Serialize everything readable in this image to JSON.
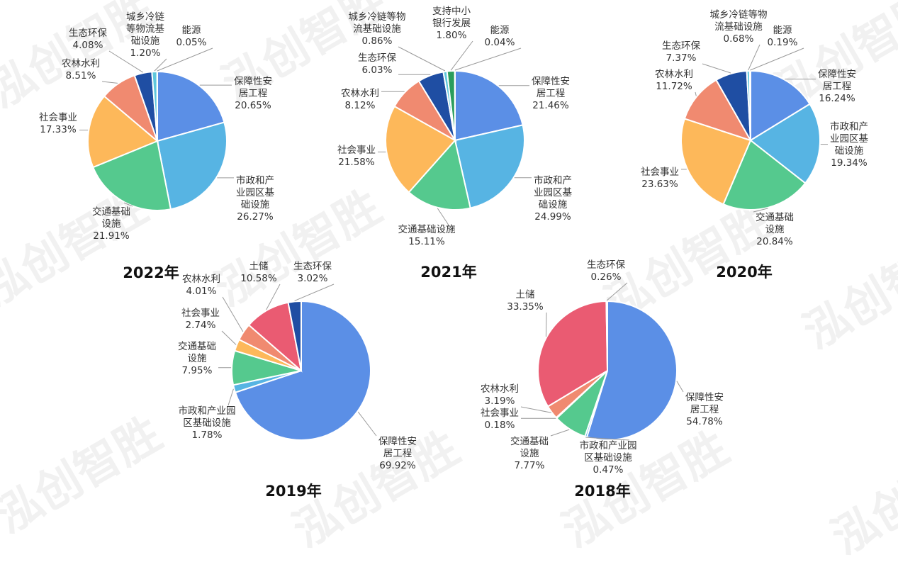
{
  "watermark": "泓创智胜",
  "colors": {
    "保障性安居工程": "#5b8fe6",
    "市政和产业园区基础设施": "#57b4e3",
    "交通基础设施": "#55c98e",
    "社会事业": "#fdb85a",
    "农林水利": "#f08a70",
    "生态环保": "#1f4ea3",
    "城乡冷链等物流基础设施": "#5fc7dc",
    "能源": "#2e9e5b",
    "支持中小银行发展": "#2a9d5c",
    "土储": "#ea5b72"
  },
  "chart_data": [
    {
      "type": "pie",
      "title": "2022年",
      "slices": [
        {
          "key": "保障性安居工程",
          "lines": [
            "保障性安",
            "居工程"
          ],
          "pct": "20.65%",
          "value": 20.65
        },
        {
          "key": "市政和产业园区基础设施",
          "lines": [
            "市政和产",
            "业园区基",
            "础设施"
          ],
          "pct": "26.27%",
          "value": 26.27
        },
        {
          "key": "交通基础设施",
          "lines": [
            "交通基础",
            "设施"
          ],
          "pct": "21.91%",
          "value": 21.91
        },
        {
          "key": "社会事业",
          "lines": [
            "社会事业"
          ],
          "pct": "17.33%",
          "value": 17.33
        },
        {
          "key": "农林水利",
          "lines": [
            "农林水利"
          ],
          "pct": "8.51%",
          "value": 8.51
        },
        {
          "key": "生态环保",
          "lines": [
            "生态环保"
          ],
          "pct": "4.08%",
          "value": 4.08
        },
        {
          "key": "城乡冷链等物流基础设施",
          "lines": [
            "城乡冷链",
            "等物流基",
            "础设施"
          ],
          "pct": "1.20%",
          "value": 1.2
        },
        {
          "key": "能源",
          "lines": [
            "能源"
          ],
          "pct": "0.05%",
          "value": 0.05
        }
      ]
    },
    {
      "type": "pie",
      "title": "2021年",
      "slices": [
        {
          "key": "保障性安居工程",
          "lines": [
            "保障性安",
            "居工程"
          ],
          "pct": "21.46%",
          "value": 21.46
        },
        {
          "key": "市政和产业园区基础设施",
          "lines": [
            "市政和产",
            "业园区基",
            "础设施"
          ],
          "pct": "24.99%",
          "value": 24.99
        },
        {
          "key": "交通基础设施",
          "lines": [
            "交通基础设施"
          ],
          "pct": "15.11%",
          "value": 15.11
        },
        {
          "key": "社会事业",
          "lines": [
            "社会事业"
          ],
          "pct": "21.58%",
          "value": 21.58
        },
        {
          "key": "农林水利",
          "lines": [
            "农林水利"
          ],
          "pct": "8.12%",
          "value": 8.12
        },
        {
          "key": "生态环保",
          "lines": [
            "生态环保"
          ],
          "pct": "6.03%",
          "value": 6.03
        },
        {
          "key": "城乡冷链等物流基础设施",
          "lines": [
            "城乡冷链等物",
            "流基础设施"
          ],
          "pct": "0.86%",
          "value": 0.86
        },
        {
          "key": "支持中小银行发展",
          "lines": [
            "支持中小",
            "银行发展"
          ],
          "pct": "1.80%",
          "value": 1.8
        },
        {
          "key": "能源",
          "lines": [
            "能源"
          ],
          "pct": "0.04%",
          "value": 0.04
        }
      ]
    },
    {
      "type": "pie",
      "title": "2020年",
      "slices": [
        {
          "key": "保障性安居工程",
          "lines": [
            "保障性安",
            "居工程"
          ],
          "pct": "16.24%",
          "value": 16.24
        },
        {
          "key": "市政和产业园区基础设施",
          "lines": [
            "市政和产",
            "业园区基",
            "础设施"
          ],
          "pct": "19.34%",
          "value": 19.34
        },
        {
          "key": "交通基础设施",
          "lines": [
            "交通基础",
            "设施"
          ],
          "pct": "20.84%",
          "value": 20.84
        },
        {
          "key": "社会事业",
          "lines": [
            "社会事业"
          ],
          "pct": "23.63%",
          "value": 23.63
        },
        {
          "key": "农林水利",
          "lines": [
            "农林水利"
          ],
          "pct": "11.72%",
          "value": 11.72
        },
        {
          "key": "生态环保",
          "lines": [
            "生态环保"
          ],
          "pct": "7.37%",
          "value": 7.37
        },
        {
          "key": "城乡冷链等物流基础设施",
          "lines": [
            "城乡冷链等物",
            "流基础设施"
          ],
          "pct": "0.68%",
          "value": 0.68
        },
        {
          "key": "能源",
          "lines": [
            "能源"
          ],
          "pct": "0.19%",
          "value": 0.19
        }
      ]
    },
    {
      "type": "pie",
      "title": "2019年",
      "slices": [
        {
          "key": "保障性安居工程",
          "lines": [
            "保障性安",
            "居工程"
          ],
          "pct": "69.92%",
          "value": 69.92
        },
        {
          "key": "市政和产业园区基础设施",
          "lines": [
            "市政和产业园",
            "区基础设施"
          ],
          "pct": "1.78%",
          "value": 1.78
        },
        {
          "key": "交通基础设施",
          "lines": [
            "交通基础",
            "设施"
          ],
          "pct": "7.95%",
          "value": 7.95
        },
        {
          "key": "社会事业",
          "lines": [
            "社会事业"
          ],
          "pct": "2.74%",
          "value": 2.74
        },
        {
          "key": "农林水利",
          "lines": [
            "农林水利"
          ],
          "pct": "4.01%",
          "value": 4.01
        },
        {
          "key": "土储",
          "lines": [
            "土储"
          ],
          "pct": "10.58%",
          "value": 10.58
        },
        {
          "key": "生态环保",
          "lines": [
            "生态环保"
          ],
          "pct": "3.02%",
          "value": 3.02
        }
      ]
    },
    {
      "type": "pie",
      "title": "2018年",
      "slices": [
        {
          "key": "保障性安居工程",
          "lines": [
            "保障性安",
            "居工程"
          ],
          "pct": "54.78%",
          "value": 54.78
        },
        {
          "key": "市政和产业园区基础设施",
          "lines": [
            "市政和产业园",
            "区基础设施"
          ],
          "pct": "0.47%",
          "value": 0.47
        },
        {
          "key": "交通基础设施",
          "lines": [
            "交通基础",
            "设施"
          ],
          "pct": "7.77%",
          "value": 7.77
        },
        {
          "key": "社会事业",
          "lines": [
            "社会事业"
          ],
          "pct": "0.18%",
          "value": 0.18
        },
        {
          "key": "农林水利",
          "lines": [
            "农林水利"
          ],
          "pct": "3.19%",
          "value": 3.19
        },
        {
          "key": "土储",
          "lines": [
            "土储"
          ],
          "pct": "33.35%",
          "value": 33.35
        },
        {
          "key": "生态环保",
          "lines": [
            "生态环保"
          ],
          "pct": "0.26%",
          "value": 0.26
        }
      ]
    }
  ]
}
